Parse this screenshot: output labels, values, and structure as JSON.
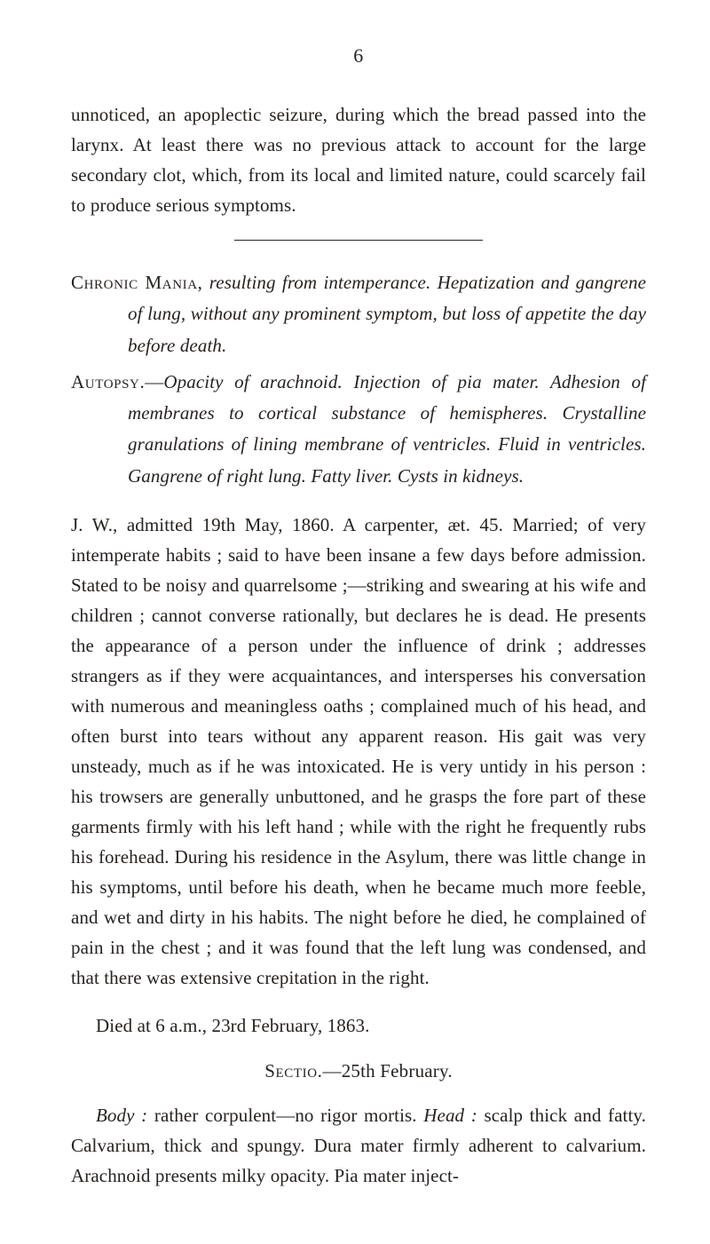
{
  "page_number": "6",
  "intro_paragraph": "unnoticed, an apoplectic seizure, during which the bread passed into the larynx. At least there was no previous attack to account for the large secondary clot, which, from its local and limited nature, could scarcely fail to produce serious symptoms.",
  "heading1": {
    "lead_sc": "Chronic Mania,",
    "rest_italic": " resulting from intemperance. Hepatization and gangrene of lung, without any prominent symptom, but loss of appetite the day before death."
  },
  "heading2": {
    "lead_sc": "Autopsy.",
    "dash": "—",
    "rest_italic": "Opacity of arachnoid. Injection of pia mater. Ad­hesion of membranes to cortical substance of hemispheres. Crystalline granulations of lining membrane of ventricles. Fluid in ventricles. Gangrene of right lung. Fatty liver. Cysts in kidneys."
  },
  "main_paragraph": "J. W., admitted 19th May, 1860. A carpenter, æt. 45. Married; of very intemperate habits ; said to have been insane a few days before admission. Stated to be noisy and quarrelsome ;—striking and swearing at his wife and children ; cannot converse rationally, but declares he is dead. He presents the appearance of a person under the influence of drink ; addresses strangers as if they were acquaintances, and intersperses his conversation with numerous and meaningless oaths ; complained much of his head, and often burst into tears without any apparent reason. His gait was very unsteady, much as if he was intoxicated. He is very untidy in his person : his trowsers are generally unbuttoned, and he grasps the fore part of these garments firmly with his left hand ; while with the right he frequently rubs his forehead. During his residence in the Asylum, there was little change in his symptoms, until before his death, when he became much more feeble, and wet and dirty in his habits. The night before he died, he complained of pain in the chest ; and it was found that the left lung was condensed, and that there was extensive crepitation in the right.",
  "died_line": "Died at 6 a.m., 23rd February, 1863.",
  "sectio": {
    "lead_sc": "Sectio.",
    "rest": "—25th February."
  },
  "body_section": {
    "body_label_it": "Body :",
    "body_text": " rather corpulent—no rigor mortis.  ",
    "head_label_it": "Head :",
    "head_text": " scalp thick and fatty. Calvarium, thick and spungy. Dura mater firmly adherent to calvarium. Arachnoid presents milky opacity. Pia mater inject-"
  }
}
